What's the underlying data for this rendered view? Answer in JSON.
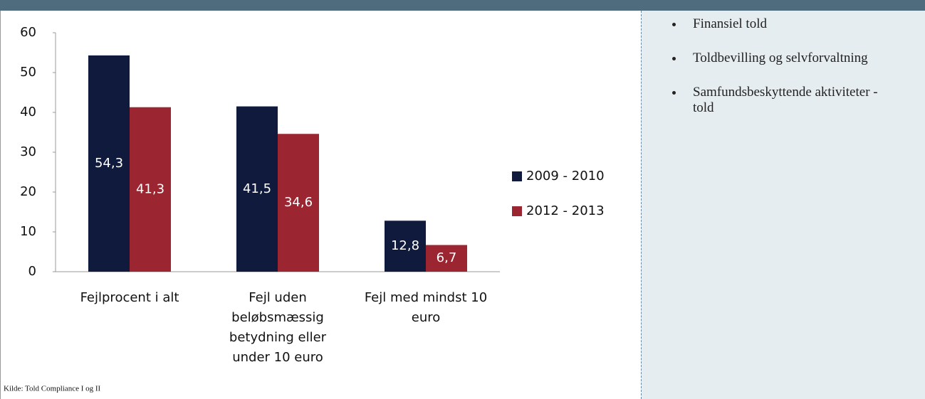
{
  "chart_data": {
    "type": "bar",
    "categories": [
      "Fejlprocent i alt",
      "Fejl uden beløbsmæssig betydning eller under 10 euro",
      "Fejl med mindst 10 euro"
    ],
    "series": [
      {
        "name": "2009 - 2010",
        "color": "#0f1a3c",
        "values": [
          54.3,
          41.5,
          12.8
        ],
        "value_labels": [
          "54,3",
          "41,5",
          "12,8"
        ]
      },
      {
        "name": "2012 - 2013",
        "color": "#9b2530",
        "values": [
          41.3,
          34.6,
          6.7
        ],
        "value_labels": [
          "41,3",
          "34,6",
          "6,7"
        ]
      }
    ],
    "ylim": [
      0,
      60
    ],
    "yticks": [
      0,
      10,
      20,
      30,
      40,
      50,
      60
    ],
    "grid": false,
    "legend": "right",
    "source": "Kilde: Told Compliance I og II"
  },
  "side_panel": {
    "items": [
      "Finansiel told",
      "Toldbevilling og selvforvaltning",
      "Samfundsbeskyttende aktiviteter - told"
    ]
  }
}
